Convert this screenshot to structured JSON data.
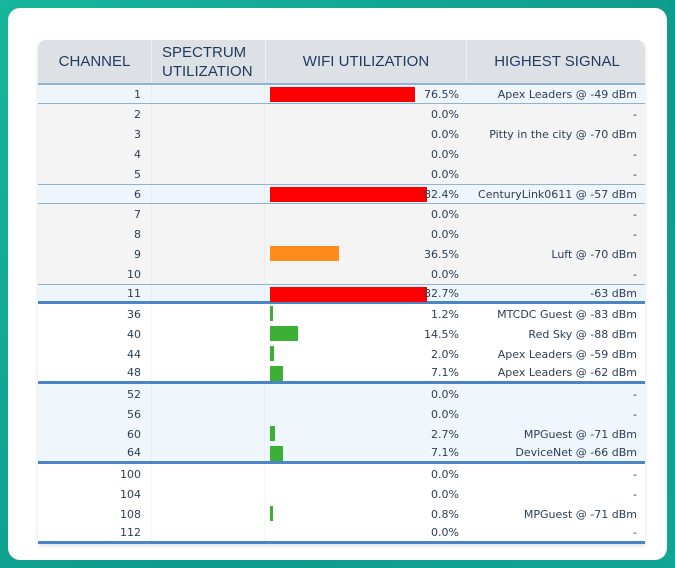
{
  "header": {
    "channel": "CHANNEL",
    "spectrum": "SPECTRUM UTILIZATION",
    "wifi": "WIFI UTILIZATION",
    "signal": "HIGHEST SIGNAL"
  },
  "colors": {
    "high": "#ff0000",
    "medium": "#ff8c1a",
    "low": "#3cb034",
    "separator": "#4a86c5"
  },
  "rows": [
    {
      "channel": "1",
      "util": 76.5,
      "util_label": "76.5%",
      "signal": "Apex Leaders @ -49 dBm",
      "style": "hl"
    },
    {
      "channel": "2",
      "util": 0,
      "util_label": "0.0%",
      "signal": "-",
      "style": "g24"
    },
    {
      "channel": "3",
      "util": 0,
      "util_label": "0.0%",
      "signal": "Pitty in the city @ -70 dBm",
      "style": "g24"
    },
    {
      "channel": "4",
      "util": 0,
      "util_label": "0.0%",
      "signal": "-",
      "style": "g24"
    },
    {
      "channel": "5",
      "util": 0,
      "util_label": "0.0%",
      "signal": "-",
      "style": "g24"
    },
    {
      "channel": "6",
      "util": 82.4,
      "util_label": "82.4%",
      "signal": "CenturyLink0611 @ -57 dBm",
      "style": "hl"
    },
    {
      "channel": "7",
      "util": 0,
      "util_label": "0.0%",
      "signal": "-",
      "style": "g24"
    },
    {
      "channel": "8",
      "util": 0,
      "util_label": "0.0%",
      "signal": "-",
      "style": "g24"
    },
    {
      "channel": "9",
      "util": 36.5,
      "util_label": "36.5%",
      "signal": "Luft @ -70 dBm",
      "style": "g24"
    },
    {
      "channel": "10",
      "util": 0,
      "util_label": "0.0%",
      "signal": "-",
      "style": "g24"
    },
    {
      "channel": "11",
      "util": 82.7,
      "util_label": "82.7%",
      "signal": "-63 dBm",
      "style": "hl sep"
    },
    {
      "channel": "36",
      "util": 1.2,
      "util_label": "1.2%",
      "signal": "MTCDC Guest @ -83 dBm",
      "style": "white"
    },
    {
      "channel": "40",
      "util": 14.5,
      "util_label": "14.5%",
      "signal": "Red Sky @ -88 dBm",
      "style": "white"
    },
    {
      "channel": "44",
      "util": 2.0,
      "util_label": "2.0%",
      "signal": "Apex Leaders @ -59 dBm",
      "style": "white"
    },
    {
      "channel": "48",
      "util": 7.1,
      "util_label": "7.1%",
      "signal": "Apex Leaders @ -62 dBm",
      "style": "white sep"
    },
    {
      "channel": "52",
      "util": 0,
      "util_label": "0.0%",
      "signal": "-",
      "style": "blue"
    },
    {
      "channel": "56",
      "util": 0,
      "util_label": "0.0%",
      "signal": "-",
      "style": "blue"
    },
    {
      "channel": "60",
      "util": 2.7,
      "util_label": "2.7%",
      "signal": "MPGuest @ -71 dBm",
      "style": "blue"
    },
    {
      "channel": "64",
      "util": 7.1,
      "util_label": "7.1%",
      "signal": "DeviceNet @ -66 dBm",
      "style": "blue sep"
    },
    {
      "channel": "100",
      "util": 0,
      "util_label": "0.0%",
      "signal": "-",
      "style": "white"
    },
    {
      "channel": "104",
      "util": 0,
      "util_label": "0.0%",
      "signal": "-",
      "style": "white"
    },
    {
      "channel": "108",
      "util": 0.8,
      "util_label": "0.8%",
      "signal": "MPGuest @ -71 dBm",
      "style": "white"
    },
    {
      "channel": "112",
      "util": 0,
      "util_label": "0.0%",
      "signal": "-",
      "style": "white sep"
    }
  ]
}
